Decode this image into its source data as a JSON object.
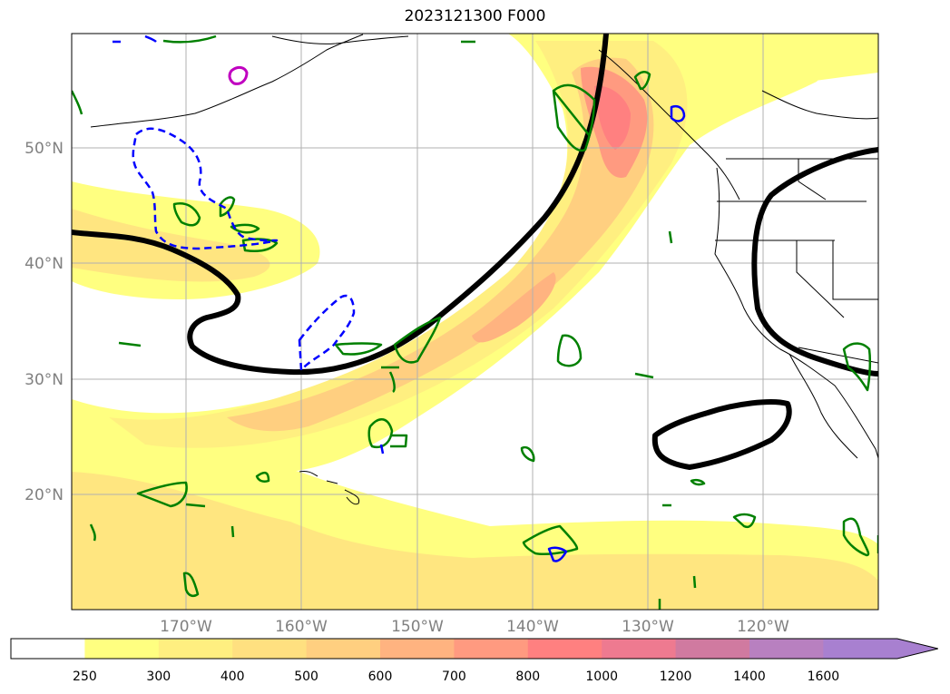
{
  "title": "2023121300 F000",
  "lat_labels": [
    "50°N",
    "40°N",
    "30°N",
    "20°N"
  ],
  "lon_labels": [
    "170°W",
    "160°W",
    "150°W",
    "140°W",
    "130°W",
    "120°W"
  ],
  "colorbar": {
    "ticks": [
      "250",
      "300",
      "400",
      "500",
      "600",
      "700",
      "800",
      "1000",
      "1200",
      "1400",
      "1600"
    ],
    "colors": [
      "#ffffff",
      "#ffff80",
      "#ffef80",
      "#ffe080",
      "#ffcf80",
      "#ffb380",
      "#ff9a80",
      "#ff8080",
      "#ee7a90",
      "#d07aa0",
      "#b880c0",
      "#a880d0"
    ]
  },
  "map_colors": {
    "contour_black": "#000000",
    "contour_green": "#008000",
    "contour_blue": "#0000ff",
    "contour_magenta": "#c000c0",
    "grid": "#b0b0b0"
  }
}
